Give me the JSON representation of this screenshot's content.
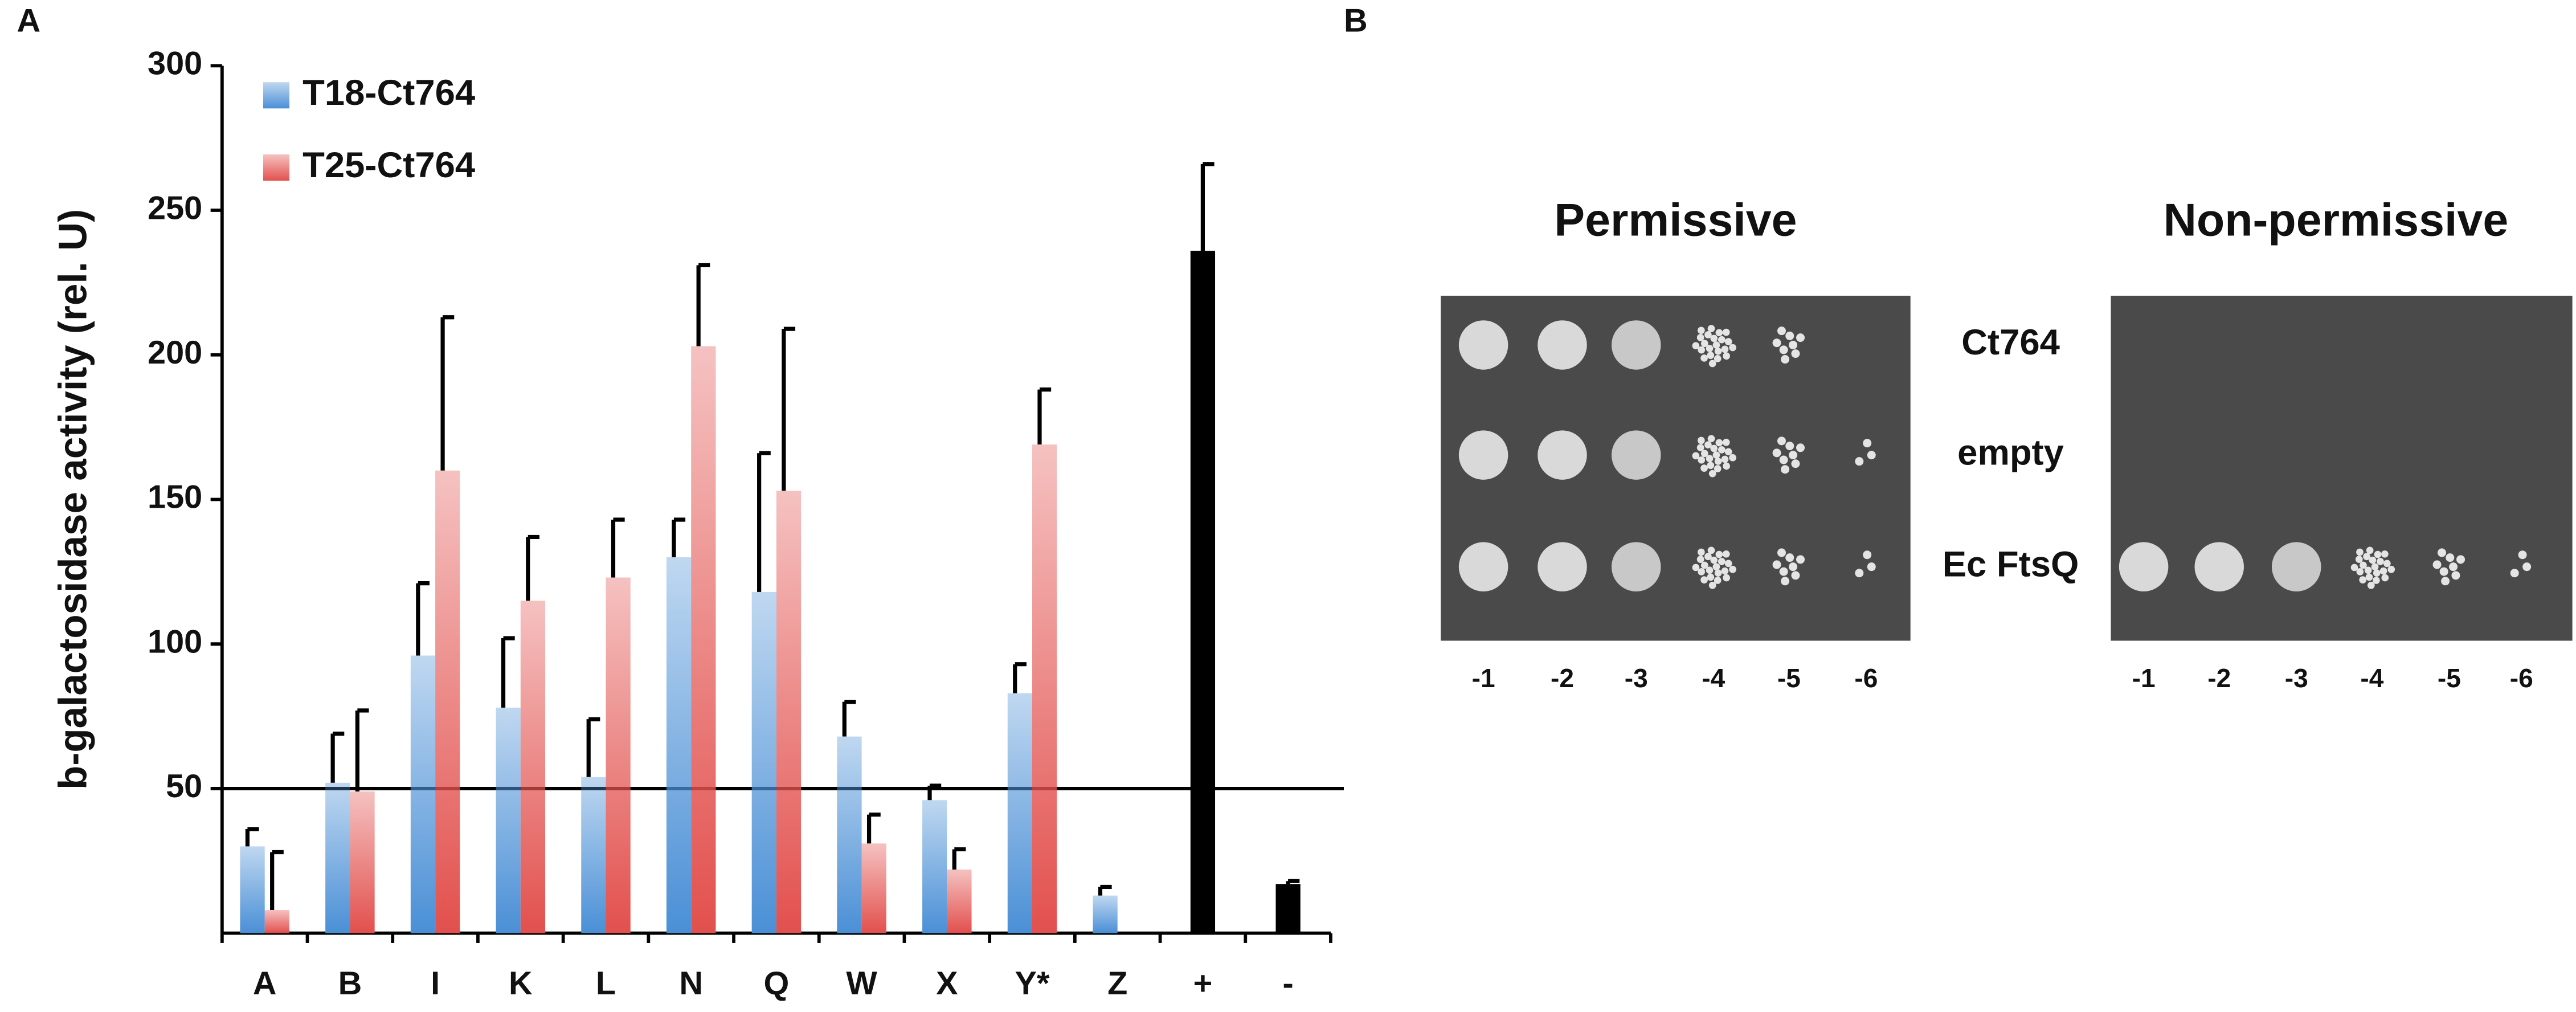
{
  "chart_data": {
    "type": "bar",
    "panel_label": "A",
    "y_label": "b-galactosidase activity (rel. U)",
    "categories": [
      "A",
      "B",
      "I",
      "K",
      "L",
      "N",
      "Q",
      "W",
      "X",
      "Y*",
      "Z",
      "+",
      "-"
    ],
    "series": [
      {
        "name": "T18-Ct764",
        "color": "#4a8fd6",
        "values": [
          30,
          52,
          96,
          78,
          54,
          130,
          118,
          68,
          46,
          83,
          13,
          null,
          null
        ],
        "errors": [
          6,
          17,
          25,
          24,
          20,
          13,
          48,
          12,
          5,
          10,
          3,
          null,
          null
        ]
      },
      {
        "name": "T25-Ct764",
        "color": "#e2504d",
        "values": [
          8,
          49,
          160,
          115,
          123,
          203,
          153,
          31,
          22,
          169,
          null,
          null,
          null
        ],
        "errors": [
          20,
          28,
          53,
          22,
          20,
          28,
          56,
          10,
          7,
          19,
          null,
          null,
          null
        ]
      },
      {
        "color": "#000000",
        "values": [
          null,
          null,
          null,
          null,
          null,
          null,
          null,
          null,
          null,
          null,
          null,
          236,
          17
        ],
        "errors": [
          null,
          null,
          null,
          null,
          null,
          null,
          null,
          null,
          null,
          null,
          null,
          30,
          1
        ]
      }
    ],
    "reference_line": 50,
    "ylim": [
      0,
      300
    ],
    "yticks": [
      50,
      100,
      150,
      200,
      250,
      300
    ]
  },
  "panel_b": {
    "panel_label": "B",
    "plates": [
      {
        "title": "Permissive",
        "dilutions": [
          "-1",
          "-2",
          "-3",
          "-4",
          "-5",
          "-6"
        ]
      },
      {
        "title": "Non-permissive",
        "dilutions": [
          "-1",
          "-2",
          "-3",
          "-4",
          "-5",
          "-6"
        ]
      }
    ],
    "rows": [
      "Ct764",
      "empty",
      "Ec FtsQ"
    ]
  }
}
